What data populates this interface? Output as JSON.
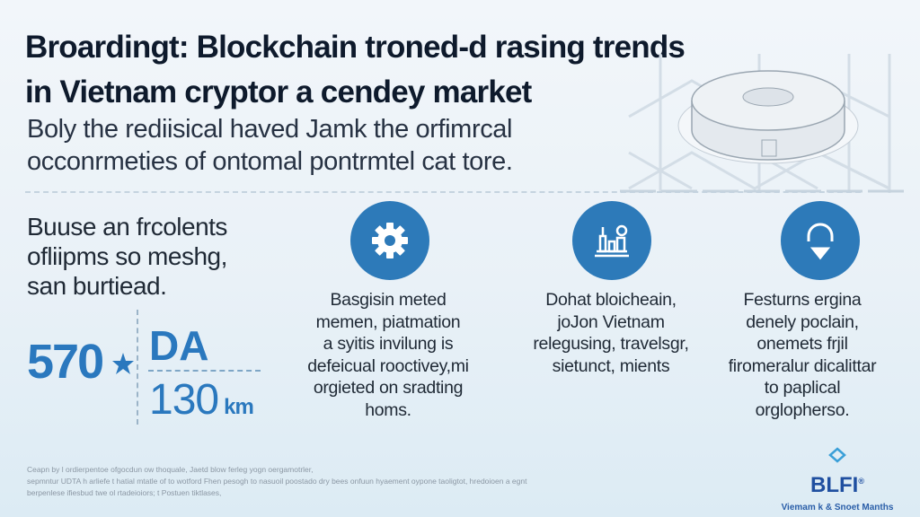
{
  "header": {
    "title_lines": [
      "Broardingt: Blockchain troned-d rasing trends",
      "in Vietnam cryptor a cendey market"
    ],
    "subtitle_lines": [
      "Boly the rediisical haved Jamk the orfimrcal",
      "occonrmeties of ontomal pontrmtel cat tore."
    ]
  },
  "lead": {
    "lines": [
      "Buuse an frcolents",
      "ofliipms so meshg,",
      "san burtiead."
    ]
  },
  "stats": {
    "value_a": "570",
    "label_b": "DA",
    "value_c": "130",
    "unit_c": "km"
  },
  "features": [
    {
      "icon": "gear-icon",
      "lines": [
        "Basgisin meted",
        "memen, piatmation",
        "a syitis invilung is",
        "defeicual rooctivey,mi",
        "orgieted on sradting",
        "homs."
      ]
    },
    {
      "icon": "building-chart-icon",
      "lines": [
        "Dohat bloicheain,",
        "joJon Vietnam",
        "relegusing, travelsgr,",
        "sietunct, mients"
      ]
    },
    {
      "icon": "headset-icon",
      "lines": [
        "Festurns ergina",
        "denely poclain,",
        "onemets frjil",
        "firomeralur dicalittar",
        "to paplical",
        "orglopherso."
      ]
    }
  ],
  "footer": {
    "lines": [
      "Ceapn by l ordierpentoe ofgocdun ow thoquale, Jaetd blow ferleg yogn oergamotrler,",
      "sepmntur UDTA h arliefe t hatial mtatle of to wotford Fhen pesogh to nasuoil poostado dry bees onfuun hyaement oypone taoligtot, hredoioen a egnt",
      "berpenlese ifiesbud twe ol rtadeioiors; t Postuen tiktlases,"
    ]
  },
  "logo": {
    "name": "BLFI",
    "registered": "®",
    "tagline": "Viemam k & Snoet Manths"
  },
  "colors": {
    "accent": "#2d7ab9",
    "title": "#0e1a2c",
    "logo": "#1f4fa0"
  }
}
